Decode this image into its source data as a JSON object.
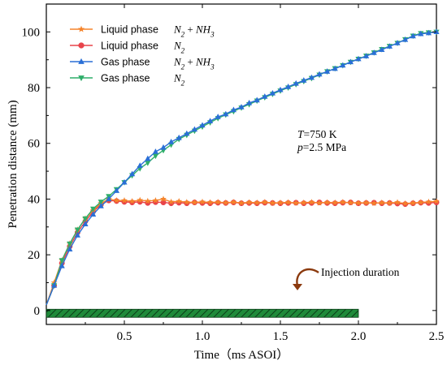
{
  "chart_data": {
    "type": "line",
    "xlabel": "Time（ms ASOI）",
    "ylabel": "Penetration distance (mm)",
    "xlim": [
      0.0,
      2.5
    ],
    "ylim": [
      -5,
      110
    ],
    "x_ticks": [
      "0.5",
      "1.0",
      "1.5",
      "2.0",
      "2.5"
    ],
    "y_ticks": [
      "0",
      "20",
      "40",
      "60",
      "80",
      "100"
    ],
    "grid": false,
    "legend_position": "top-left",
    "series": [
      {
        "name": "Liquid phase",
        "formula": "N2 + NH3",
        "color": "#f5832a",
        "marker": "star",
        "x": [
          0.0,
          0.05,
          0.1,
          0.15,
          0.2,
          0.25,
          0.3,
          0.35,
          0.4,
          0.45,
          0.5,
          0.55,
          0.6,
          0.65,
          0.7,
          0.75,
          0.8,
          0.85,
          0.9,
          0.95,
          1.0,
          1.05,
          1.1,
          1.15,
          1.2,
          1.25,
          1.3,
          1.35,
          1.4,
          1.45,
          1.5,
          1.55,
          1.6,
          1.65,
          1.7,
          1.75,
          1.8,
          1.85,
          1.9,
          1.95,
          2.0,
          2.05,
          2.1,
          2.15,
          2.2,
          2.25,
          2.3,
          2.35,
          2.4,
          2.45,
          2.5
        ],
        "y": [
          2,
          10,
          18,
          24,
          29,
          33,
          36,
          38.5,
          40,
          39.5,
          39.5,
          39.2,
          39.6,
          39.3,
          39.5,
          40,
          39,
          39.2,
          38.9,
          38.8,
          39,
          38.8,
          38.9,
          38.7,
          38.9,
          38.6,
          38.8,
          38.7,
          38.9,
          38.6,
          38.7,
          38.8,
          38.6,
          38.7,
          38.9,
          38.6,
          38.8,
          38.7,
          38.9,
          38.7,
          38.6,
          38.7,
          38.5,
          38.7,
          38.6,
          38.8,
          38.4,
          38.6,
          38.8,
          39,
          39.2
        ]
      },
      {
        "name": "Liquid phase",
        "formula": "N2",
        "color": "#e8434a",
        "marker": "circle",
        "x": [
          0.0,
          0.05,
          0.1,
          0.15,
          0.2,
          0.25,
          0.3,
          0.35,
          0.4,
          0.45,
          0.5,
          0.55,
          0.6,
          0.65,
          0.7,
          0.75,
          0.8,
          0.85,
          0.9,
          0.95,
          1.0,
          1.05,
          1.1,
          1.15,
          1.2,
          1.25,
          1.3,
          1.35,
          1.4,
          1.45,
          1.5,
          1.55,
          1.6,
          1.65,
          1.7,
          1.75,
          1.8,
          1.85,
          1.9,
          1.95,
          2.0,
          2.05,
          2.1,
          2.15,
          2.2,
          2.25,
          2.3,
          2.35,
          2.4,
          2.45,
          2.5
        ],
        "y": [
          2,
          9,
          17,
          23,
          28,
          32,
          35.5,
          38,
          39.5,
          39.3,
          39,
          38.8,
          39,
          38.6,
          38.9,
          38.8,
          38.5,
          38.7,
          38.5,
          38.8,
          38.6,
          38.5,
          38.7,
          38.6,
          38.8,
          38.5,
          38.6,
          38.5,
          38.7,
          38.6,
          38.5,
          38.6,
          38.7,
          38.5,
          38.6,
          38.8,
          38.6,
          38.5,
          38.7,
          38.8,
          38.5,
          38.6,
          38.7,
          38.5,
          38.6,
          38.4,
          38.2,
          38.5,
          38.7,
          38.6,
          38.8
        ]
      },
      {
        "name": "Gas phase",
        "formula": "N2 + NH3",
        "color": "#2a6fd6",
        "marker": "triangle-up",
        "x": [
          0.0,
          0.05,
          0.1,
          0.15,
          0.2,
          0.25,
          0.3,
          0.35,
          0.4,
          0.45,
          0.5,
          0.55,
          0.6,
          0.65,
          0.7,
          0.75,
          0.8,
          0.85,
          0.9,
          0.95,
          1.0,
          1.05,
          1.1,
          1.15,
          1.2,
          1.25,
          1.3,
          1.35,
          1.4,
          1.45,
          1.5,
          1.55,
          1.6,
          1.65,
          1.7,
          1.75,
          1.8,
          1.85,
          1.9,
          1.95,
          2.0,
          2.05,
          2.1,
          2.15,
          2.2,
          2.25,
          2.3,
          2.35,
          2.4,
          2.45,
          2.5
        ],
        "y": [
          2,
          9,
          16,
          22,
          27,
          31,
          34.5,
          37.5,
          40,
          43,
          46,
          49,
          52,
          54.5,
          57,
          58.5,
          60.5,
          62,
          63.5,
          65,
          66.5,
          68,
          69.5,
          70.5,
          72,
          73,
          74.5,
          75.5,
          76.8,
          78,
          79.2,
          80.3,
          81.5,
          82.6,
          83.6,
          84.8,
          85.8,
          86.8,
          88,
          89.2,
          90.3,
          91.3,
          92.5,
          93.6,
          94.8,
          96,
          97.2,
          98.5,
          99.3,
          99.6,
          100
        ]
      },
      {
        "name": "Gas phase",
        "formula": "N2",
        "color": "#2fae6a",
        "marker": "triangle-down",
        "x": [
          0.0,
          0.05,
          0.1,
          0.15,
          0.2,
          0.25,
          0.3,
          0.35,
          0.4,
          0.45,
          0.5,
          0.55,
          0.6,
          0.65,
          0.7,
          0.75,
          0.8,
          0.85,
          0.9,
          0.95,
          1.0,
          1.05,
          1.1,
          1.15,
          1.2,
          1.25,
          1.3,
          1.35,
          1.4,
          1.45,
          1.5,
          1.55,
          1.6,
          1.65,
          1.7,
          1.75,
          1.8,
          1.85,
          1.9,
          1.95,
          2.0,
          2.05,
          2.1,
          2.15,
          2.2,
          2.25,
          2.3,
          2.35,
          2.4,
          2.45,
          2.5
        ],
        "y": [
          2,
          9,
          18,
          24,
          29,
          33,
          36.5,
          39,
          41,
          43.5,
          46,
          48.5,
          51,
          53,
          55.5,
          57.5,
          59.5,
          61.5,
          63,
          64.5,
          66,
          67.5,
          69,
          70.3,
          71.5,
          72.8,
          74,
          75.3,
          76.5,
          77.7,
          78.9,
          80,
          81.2,
          82.3,
          83.4,
          84.6,
          85.8,
          86.9,
          88,
          89.2,
          90.3,
          91.4,
          92.6,
          93.8,
          94.9,
          96,
          97.3,
          98.6,
          99.5,
          99.8,
          100
        ]
      }
    ],
    "conditions": [
      {
        "var": "T",
        "rest": "=750 K"
      },
      {
        "var": "p",
        "rest": "=2.5 MPa"
      }
    ],
    "injection_bar": {
      "x_start": 0.0,
      "x_end": 2.0,
      "y_center": -1,
      "color": "#1f8a3a",
      "label": "Injection duration"
    }
  }
}
